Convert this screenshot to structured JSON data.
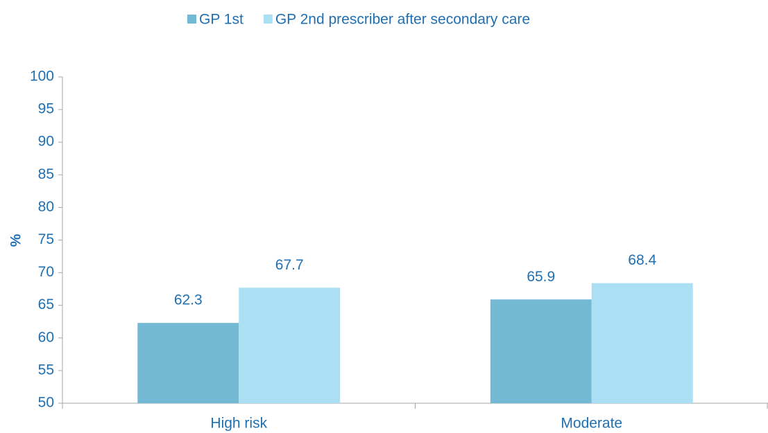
{
  "chart_data": {
    "type": "bar",
    "ylabel": "%",
    "categories": [
      "High risk",
      "Moderate"
    ],
    "series": [
      {
        "name": "GP 1st",
        "color": "#74b9d4",
        "values": [
          62.3,
          65.9
        ]
      },
      {
        "name": "GP 2nd prescriber after secondary care",
        "color": "#aadff4",
        "values": [
          67.7,
          68.4
        ]
      }
    ],
    "ylim": [
      50,
      100
    ],
    "yticks": [
      50,
      55,
      60,
      65,
      70,
      75,
      80,
      85,
      90,
      95,
      100
    ],
    "legend": "top",
    "grid": false
  }
}
